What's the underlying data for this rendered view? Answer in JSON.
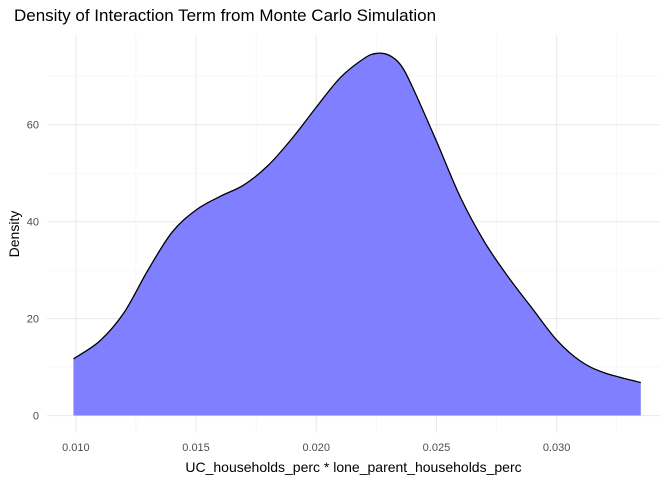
{
  "chart_data": {
    "type": "area",
    "title": "Density of Interaction Term from Monte Carlo Simulation",
    "xlabel": "UC_households_perc * lone_parent_households_perc",
    "ylabel": "Density",
    "xlim": [
      0.0088,
      0.0343
    ],
    "ylim": [
      -3.6,
      78.5
    ],
    "x_ticks": [
      0.01,
      0.015,
      0.02,
      0.025,
      0.03
    ],
    "x_tick_labels": [
      "0.010",
      "0.015",
      "0.020",
      "0.025",
      "0.030"
    ],
    "y_ticks": [
      0,
      20,
      40,
      60
    ],
    "y_tick_labels": [
      "0",
      "20",
      "40",
      "60"
    ],
    "grid": true,
    "fill_color": "#7f7fff",
    "line_color": "#000000",
    "series": [
      {
        "x": [
          0.0099,
          0.011,
          0.012,
          0.013,
          0.014,
          0.015,
          0.016,
          0.017,
          0.018,
          0.019,
          0.02,
          0.021,
          0.022,
          0.0225,
          0.023,
          0.0235,
          0.024,
          0.025,
          0.026,
          0.027,
          0.028,
          0.029,
          0.03,
          0.031,
          0.032,
          0.0335
        ],
        "values": [
          11.7,
          15.4,
          21.2,
          30.0,
          37.8,
          42.4,
          45.2,
          47.6,
          51.6,
          57.2,
          63.6,
          69.7,
          73.7,
          74.7,
          74.4,
          72.4,
          67.8,
          56.6,
          45.0,
          35.8,
          28.5,
          22.0,
          15.6,
          11.2,
          8.8,
          6.8
        ]
      }
    ]
  }
}
